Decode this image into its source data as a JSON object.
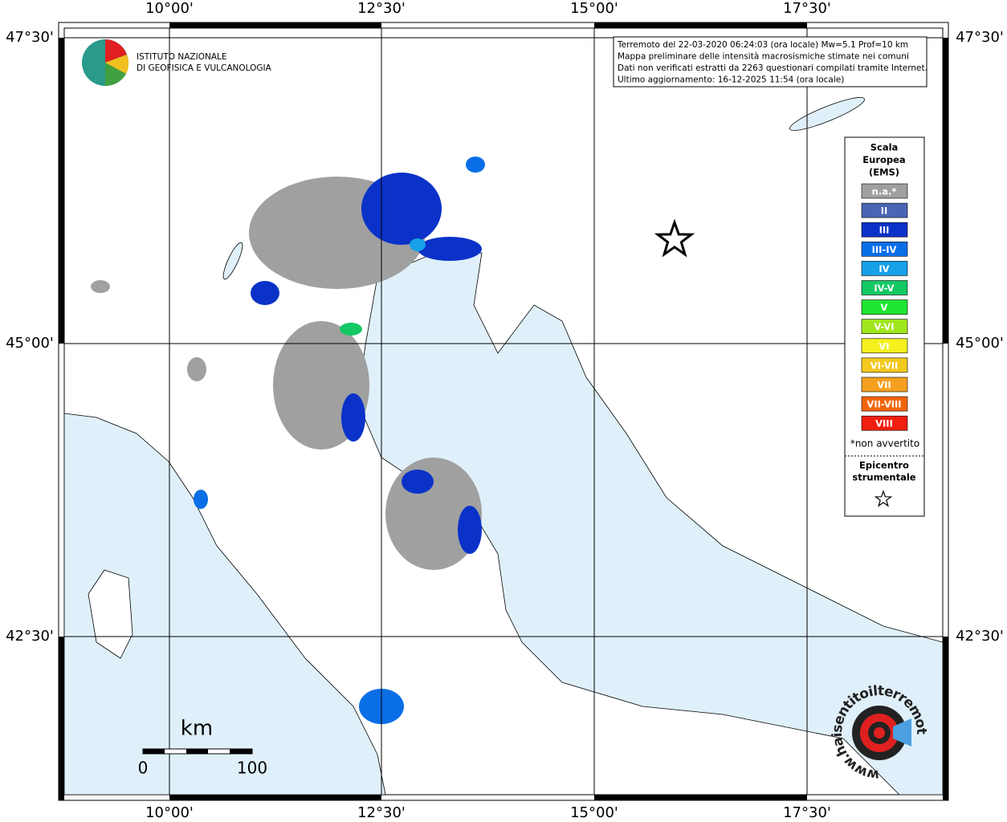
{
  "map": {
    "lon_labels": [
      "10°00'",
      "12°30'",
      "15°00'",
      "17°30'"
    ],
    "lat_labels": [
      "47°30'",
      "45°00'",
      "42°30'"
    ],
    "institute": [
      "ISTITUTO NAZIONALE",
      "DI GEOFISICA E VULCANOLOGIA"
    ],
    "info": [
      "Terremoto del 22-03-2020 06:24:03 (ora locale) Mw=5.1 Prof=10 km",
      "Mappa preliminare delle intensità macrosismiche stimate nei comuni",
      "Dati non verificati estratti da 2263 questionari compilati tramite Internet.",
      "Ultimo aggiornamento: 16-12-2025 11:54 (ora locale)"
    ],
    "legend": {
      "title": [
        "Scala",
        "Europea",
        "(EMS)"
      ],
      "items": [
        {
          "label": "n.a.*",
          "color": "#a0a0a0"
        },
        {
          "label": "II",
          "color": "#4a64b4"
        },
        {
          "label": "III",
          "color": "#0a32c8"
        },
        {
          "label": "III-IV",
          "color": "#0a6ee6"
        },
        {
          "label": "IV",
          "color": "#16a0e8"
        },
        {
          "label": "IV-V",
          "color": "#14c864"
        },
        {
          "label": "V",
          "color": "#1ee632"
        },
        {
          "label": "V-VI",
          "color": "#a0e61e"
        },
        {
          "label": "VI",
          "color": "#f5f01e"
        },
        {
          "label": "VI-VII",
          "color": "#f5c81e"
        },
        {
          "label": "VII",
          "color": "#f5a01e"
        },
        {
          "label": "VII-VIII",
          "color": "#f5640a"
        },
        {
          "label": "VIII",
          "color": "#f01e0e"
        }
      ],
      "note": "*non avvertito",
      "epicenter": [
        "Epicentro",
        "strumentale"
      ]
    },
    "scale_bar": {
      "unit": "km",
      "labels": [
        "0",
        "100"
      ]
    },
    "brand": "www.haisentitoilterremoto.it"
  }
}
